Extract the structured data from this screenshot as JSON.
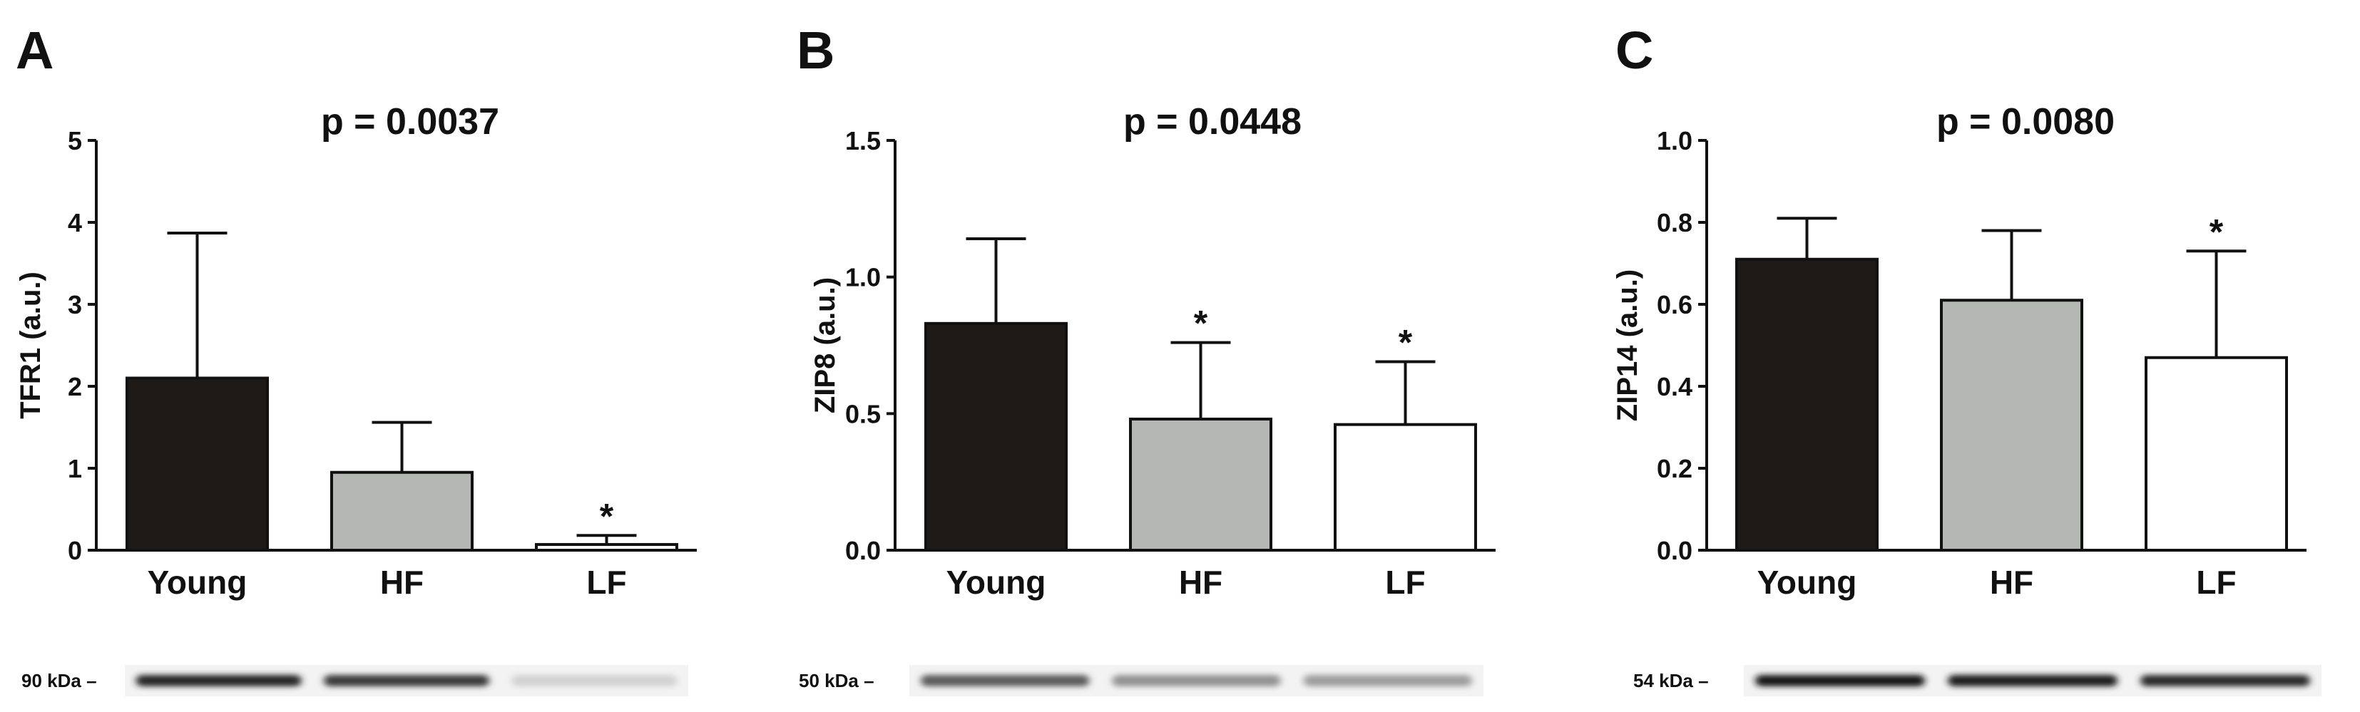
{
  "chart_data": [
    {
      "type": "bar",
      "panel": "A",
      "title": "p = 0.0037",
      "ylabel": "TFR1 (a.u.)",
      "categories": [
        "Young",
        "HF",
        "LF"
      ],
      "values": [
        2.1,
        0.95,
        0.07
      ],
      "errors": [
        1.77,
        0.61,
        0.11
      ],
      "significance": [
        "",
        "",
        "*"
      ],
      "colors": [
        "#1e1a18",
        "#b4b7b4",
        "#ffffff"
      ],
      "ylim": [
        0,
        5
      ],
      "yticks": [
        "0",
        "1",
        "2",
        "3",
        "4",
        "5"
      ],
      "ytick_values": [
        0,
        1,
        2,
        3,
        4,
        5
      ],
      "blot": {
        "label": "90 kDa",
        "intensities": [
          0.9,
          0.8,
          0.12
        ]
      }
    },
    {
      "type": "bar",
      "panel": "B",
      "title": "p = 0.0448",
      "ylabel": "ZIP8 (a.u.)",
      "categories": [
        "Young",
        "HF",
        "LF"
      ],
      "values": [
        0.83,
        0.48,
        0.46
      ],
      "errors": [
        0.31,
        0.28,
        0.23
      ],
      "significance": [
        "",
        "*",
        "*"
      ],
      "colors": [
        "#1e1a18",
        "#b4b7b4",
        "#ffffff"
      ],
      "ylim": [
        0,
        1.5
      ],
      "yticks": [
        "0.0",
        "0.5",
        "1.0",
        "1.5"
      ],
      "ytick_values": [
        0,
        0.5,
        1.0,
        1.5
      ],
      "blot": {
        "label": "50 kDa",
        "intensities": [
          0.65,
          0.4,
          0.35
        ]
      }
    },
    {
      "type": "bar",
      "panel": "C",
      "title": "p = 0.0080",
      "ylabel": "ZIP14 (a.u.)",
      "categories": [
        "Young",
        "HF",
        "LF"
      ],
      "values": [
        0.71,
        0.61,
        0.47
      ],
      "errors": [
        0.1,
        0.17,
        0.26
      ],
      "significance": [
        "",
        "",
        "*"
      ],
      "colors": [
        "#1e1a18",
        "#b4b7b4",
        "#ffffff"
      ],
      "ylim": [
        0,
        1.0
      ],
      "yticks": [
        "0.0",
        "0.2",
        "0.4",
        "0.6",
        "0.8",
        "1.0"
      ],
      "ytick_values": [
        0,
        0.2,
        0.4,
        0.6,
        0.8,
        1.0
      ],
      "blot": {
        "label": "54 kDa",
        "intensities": [
          0.97,
          0.93,
          0.88
        ]
      }
    }
  ]
}
